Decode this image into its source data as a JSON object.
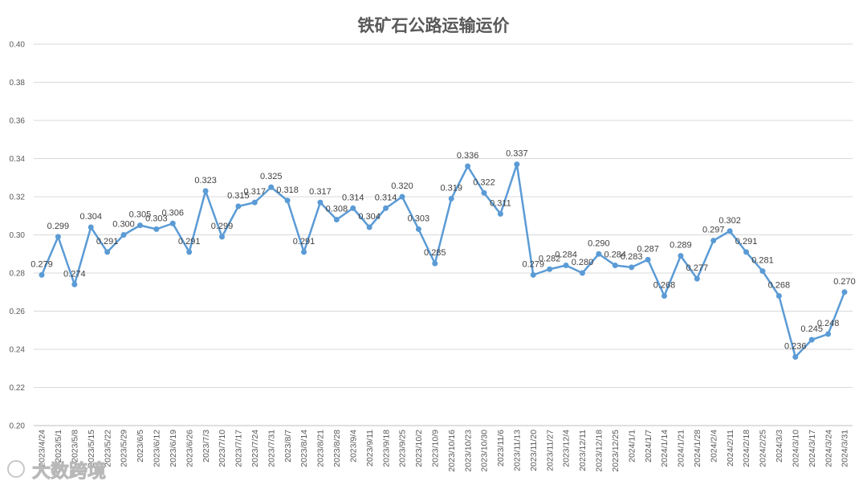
{
  "chart_data": {
    "type": "line",
    "title": "铁矿石公路运输运价",
    "xlabel": "",
    "ylabel": "",
    "ylim": [
      0.2,
      0.4
    ],
    "yticks": [
      "0.20",
      "0.22",
      "0.24",
      "0.26",
      "0.28",
      "0.30",
      "0.32",
      "0.34",
      "0.36",
      "0.38",
      "0.40"
    ],
    "grid": true,
    "legend": "none",
    "data_labels": true,
    "line_color": "#5B9BD5",
    "categories": [
      "2023/4/24",
      "2023/5/1",
      "2023/5/8",
      "2023/5/15",
      "2023/5/22",
      "2023/5/29",
      "2023/6/5",
      "2023/6/12",
      "2023/6/19",
      "2023/6/26",
      "2023/7/3",
      "2023/7/10",
      "2023/7/17",
      "2023/7/24",
      "2023/7/31",
      "2023/8/7",
      "2023/8/14",
      "2023/8/21",
      "2023/8/28",
      "2023/9/4",
      "2023/9/11",
      "2023/9/18",
      "2023/9/25",
      "2023/10/2",
      "2023/10/9",
      "2023/10/16",
      "2023/10/23",
      "2023/10/30",
      "2023/11/6",
      "2023/11/13",
      "2023/11/20",
      "2023/11/27",
      "2023/12/4",
      "2023/12/11",
      "2023/12/18",
      "2023/12/25",
      "2024/1/1",
      "2024/1/7",
      "2024/1/14",
      "2024/1/21",
      "2024/1/28",
      "2024/2/4",
      "2024/2/11",
      "2024/2/18",
      "2024/2/25",
      "2024/3/3",
      "2024/3/10",
      "2024/3/17",
      "2024/3/24",
      "2024/3/31"
    ],
    "series": [
      {
        "values": [
          0.279,
          0.299,
          0.274,
          0.304,
          0.291,
          0.3,
          0.305,
          0.303,
          0.306,
          0.291,
          0.323,
          0.299,
          0.315,
          0.317,
          0.325,
          0.318,
          0.291,
          0.317,
          0.308,
          0.314,
          0.304,
          0.314,
          0.32,
          0.303,
          0.285,
          0.319,
          0.336,
          0.322,
          0.311,
          0.337,
          0.279,
          0.282,
          0.284,
          0.28,
          0.29,
          0.284,
          0.283,
          0.287,
          0.268,
          0.289,
          0.277,
          0.297,
          0.302,
          0.291,
          0.281,
          0.268,
          0.236,
          0.245,
          0.248,
          0.27
        ]
      }
    ]
  },
  "watermark": {
    "text": "大数跨境",
    "logo_icon": "watermark-logo-icon"
  }
}
